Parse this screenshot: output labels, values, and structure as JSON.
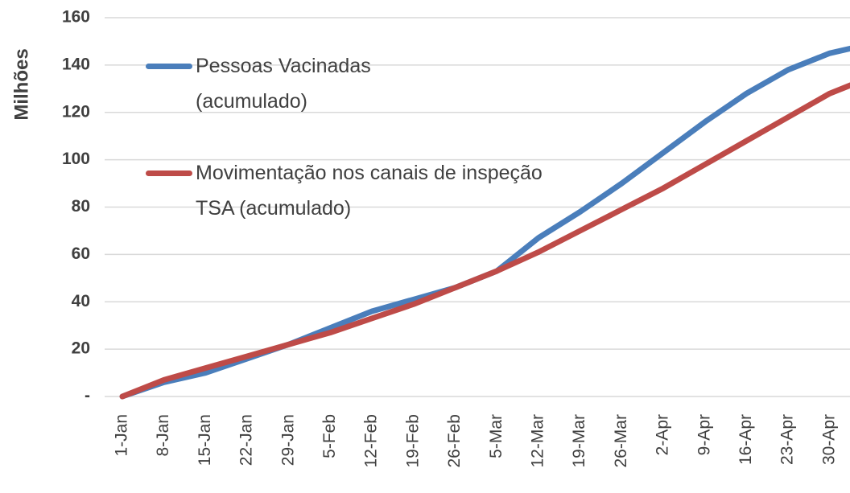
{
  "chart_data": {
    "type": "line",
    "y_label": "Milhões",
    "categories": [
      "1-Jan",
      "8-Jan",
      "15-Jan",
      "22-Jan",
      "29-Jan",
      "5-Feb",
      "12-Feb",
      "19-Feb",
      "26-Feb",
      "5-Mar",
      "12-Mar",
      "19-Mar",
      "26-Mar",
      "2-Apr",
      "9-Apr",
      "16-Apr",
      "23-Apr",
      "30-Apr",
      null
    ],
    "series": [
      {
        "name": "Pessoas Vacinadas (acumulado)",
        "color": "#4a7ebb",
        "values": [
          0,
          6,
          10,
          16,
          22,
          29,
          36,
          41,
          46,
          53,
          67,
          78,
          90,
          103,
          116,
          128,
          138,
          145,
          149
        ]
      },
      {
        "name": "Movimentação nos canais de inspeção TSA (acumulado)",
        "color": "#be4b48",
        "values": [
          0,
          7,
          12,
          17,
          22,
          27,
          33,
          39,
          46,
          53,
          61,
          70,
          79,
          88,
          98,
          108,
          118,
          128,
          135
        ]
      }
    ],
    "ylim": [
      0,
      160
    ],
    "yticks": [
      {
        "value": 0,
        "label": "-"
      },
      20,
      40,
      60,
      80,
      100,
      120,
      140,
      160
    ],
    "grid": true
  }
}
